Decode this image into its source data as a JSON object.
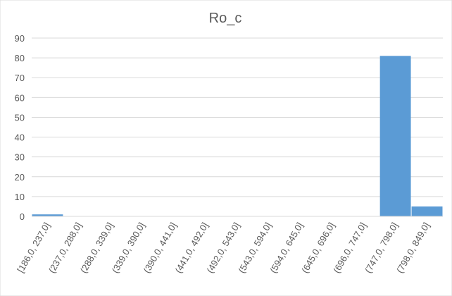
{
  "chart_data": {
    "type": "bar",
    "title": "Ro_c",
    "xlabel": "",
    "ylabel": "",
    "categories": [
      "[186,0, 237,0]",
      "(237,0, 288,0]",
      "(288,0, 339,0]",
      "(339,0, 390,0]",
      "(390,0, 441,0]",
      "(441,0, 492,0]",
      "(492,0, 543,0]",
      "(543,0, 594,0]",
      "(594,0, 645,0]",
      "(645,0, 696,0]",
      "(696,0, 747,0]",
      "(747,0, 798,0]",
      "(798,0, 849,0]"
    ],
    "values": [
      1,
      0,
      0,
      0,
      0,
      0,
      0,
      0,
      0,
      0,
      0,
      81,
      5
    ],
    "ylim": [
      0,
      90
    ],
    "yticks": [
      0,
      10,
      20,
      30,
      40,
      50,
      60,
      70,
      80,
      90
    ],
    "grid": true,
    "legend": "none",
    "bar_color": "#5b9bd5"
  }
}
